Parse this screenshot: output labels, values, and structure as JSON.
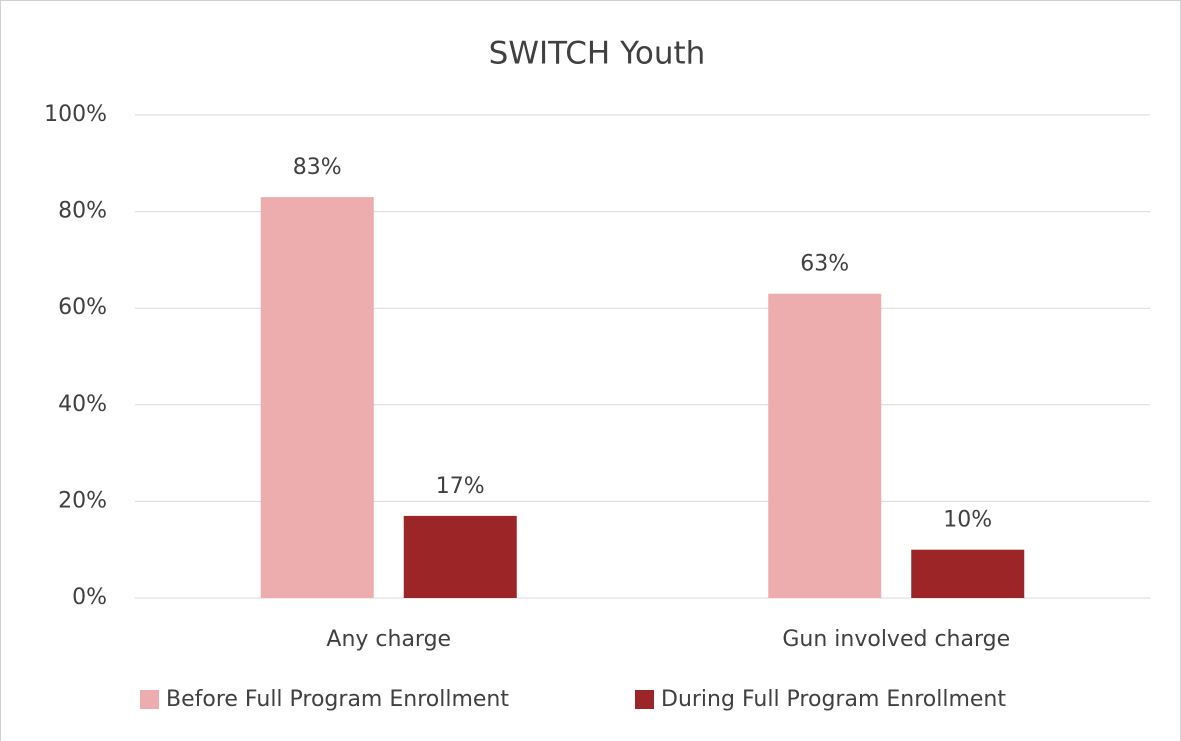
{
  "chart_data": {
    "type": "bar",
    "title": "SWITCH Youth",
    "categories": [
      "Any charge",
      "Gun involved charge"
    ],
    "series": [
      {
        "name": "Before Full Program Enrollment",
        "color": "#edadae",
        "values": [
          83,
          63
        ],
        "value_labels": [
          "83%",
          "63%"
        ]
      },
      {
        "name": "During Full Program Enrollment",
        "color": "#9b2527",
        "values": [
          17,
          10
        ],
        "value_labels": [
          "17%",
          "10%"
        ]
      }
    ],
    "ylim": [
      0,
      100
    ],
    "yticks": [
      {
        "value": 0,
        "label": "0%"
      },
      {
        "value": 20,
        "label": "20%"
      },
      {
        "value": 40,
        "label": "40%"
      },
      {
        "value": 60,
        "label": "60%"
      },
      {
        "value": 80,
        "label": "80%"
      },
      {
        "value": 100,
        "label": "100%"
      }
    ],
    "grid": true,
    "legend": "bottom"
  }
}
